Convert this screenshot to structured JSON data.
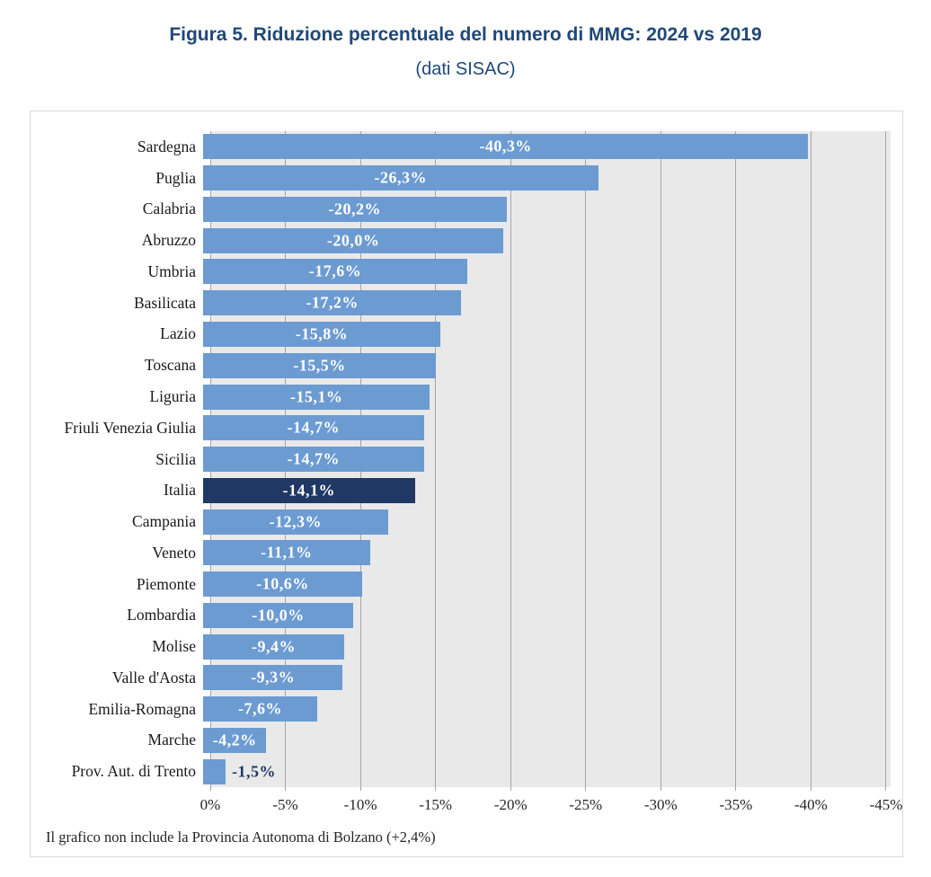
{
  "page": {
    "title": "Figura 5. Riduzione percentuale del numero di MMG: 2024 vs 2019",
    "subtitle": "(dati SISAC)"
  },
  "footnote": "Il grafico non include la Provincia Autonoma di Bolzano (+2,4%)",
  "colors": {
    "title_text": "#1F4878",
    "bar": "#6C9BD2",
    "bar_highlight": "#1F3864",
    "value_label_inside": "#FFFFFF",
    "value_label_outside": "#1F3864",
    "plot_background": "#E9E9E9",
    "gridline": "#A6A6A6",
    "chart_border": "#D9D9D9"
  },
  "chart_data": {
    "type": "bar",
    "orientation": "horizontal",
    "title": "Figura 5. Riduzione percentuale del numero di MMG: 2024 vs 2019 (dati SISAC)",
    "categories": [
      "Sardegna",
      "Puglia",
      "Calabria",
      "Abruzzo",
      "Umbria",
      "Basilicata",
      "Lazio",
      "Toscana",
      "Liguria",
      "Friuli Venezia Giulia",
      "Sicilia",
      "Italia",
      "Campania",
      "Veneto",
      "Piemonte",
      "Lombardia",
      "Molise",
      "Valle d'Aosta",
      "Emilia-Romagna",
      "Marche",
      "Prov. Aut. di Trento"
    ],
    "values": [
      -40.3,
      -26.3,
      -20.2,
      -20.0,
      -17.6,
      -17.2,
      -15.8,
      -15.5,
      -15.1,
      -14.7,
      -14.7,
      -14.1,
      -12.3,
      -11.1,
      -10.6,
      -10.0,
      -9.4,
      -9.3,
      -7.6,
      -4.2,
      -1.5
    ],
    "value_labels": [
      "-40,3%",
      "-26,3%",
      "-20,2%",
      "-20,0%",
      "-17,6%",
      "-17,2%",
      "-15,8%",
      "-15,5%",
      "-15,1%",
      "-14,7%",
      "-14,7%",
      "-14,1%",
      "-12,3%",
      "-11,1%",
      "-10,6%",
      "-10,0%",
      "-9,4%",
      "-9,3%",
      "-7,6%",
      "-4,2%",
      "-1,5%"
    ],
    "highlight_category": "Italia",
    "highlight_index": 11,
    "x_axis": {
      "ticks": [
        0,
        -5,
        -10,
        -15,
        -20,
        -25,
        -30,
        -35,
        -40,
        -45
      ],
      "tick_labels": [
        "0%",
        "-5%",
        "-10%",
        "-15%",
        "-20%",
        "-25%",
        "-30%",
        "-35%",
        "-40%",
        "-45%"
      ],
      "range": [
        0,
        -45.3
      ],
      "grid": true
    },
    "legend": false,
    "annotation": "Il grafico non include la Provincia Autonoma di Bolzano (+2,4%)"
  }
}
